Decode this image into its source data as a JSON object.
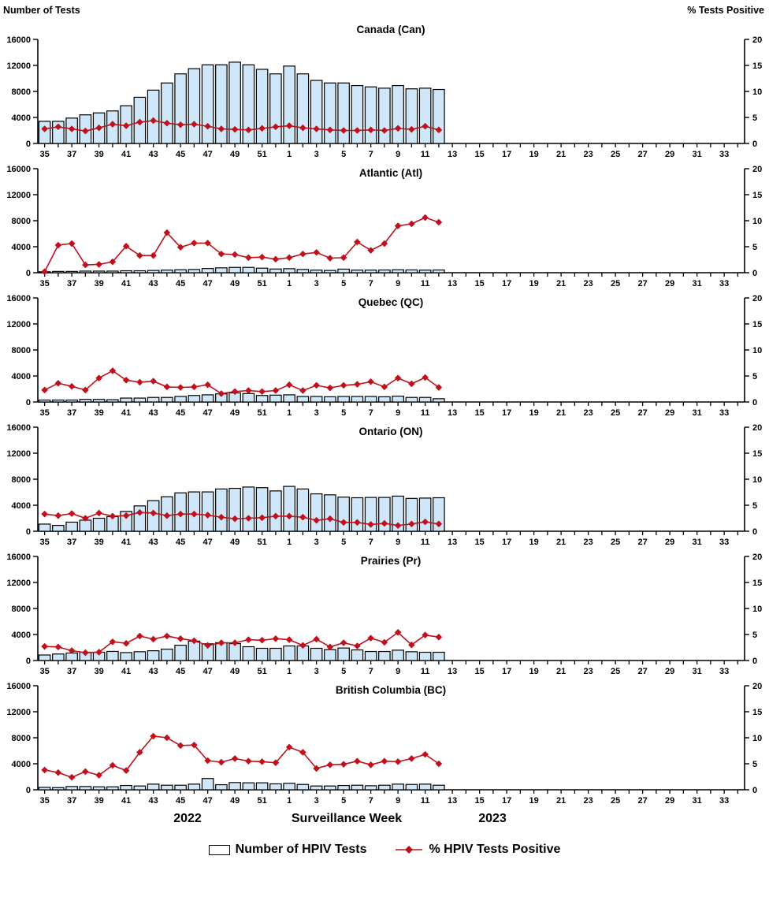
{
  "header": {
    "left_axis_title": "Number of Tests",
    "right_axis_title": "% Tests Positive"
  },
  "footer": {
    "year_left": "2022",
    "x_axis_title": "Surveillance Week",
    "year_right": "2023"
  },
  "legend": {
    "bar_label": "Number of HPIV Tests",
    "line_label": "% HPIV Tests Positive"
  },
  "colors": {
    "bar_fill": "#cfe7f8",
    "bar_stroke": "#000000",
    "line_color": "#c0101c",
    "axis_color": "#000000",
    "text_color": "#000000"
  },
  "axis_config": {
    "left_ticks": [
      0,
      4000,
      8000,
      12000,
      16000
    ],
    "left_max": 16000,
    "right_ticks": [
      0,
      5,
      10,
      15,
      20
    ],
    "right_max": 20,
    "x_tick_labels": [
      "35",
      "37",
      "39",
      "41",
      "43",
      "45",
      "47",
      "49",
      "51",
      "1",
      "3",
      "5",
      "7",
      "9",
      "11",
      "13",
      "15",
      "17",
      "19",
      "21",
      "23",
      "25",
      "27",
      "29",
      "31",
      "33"
    ],
    "total_slots": 52,
    "first_week": 35,
    "weeks_in_2022": 18
  },
  "chart_data": [
    {
      "type": "bar+line",
      "title": "Canada (Can)",
      "region_code": "Can",
      "x_weeks": [
        35,
        36,
        37,
        38,
        39,
        40,
        41,
        42,
        43,
        44,
        45,
        46,
        47,
        48,
        49,
        50,
        51,
        52,
        1,
        2,
        3,
        4,
        5,
        6,
        7,
        8,
        9,
        10,
        11,
        12
      ],
      "ylim_left": [
        0,
        16000
      ],
      "ylim_right": [
        0,
        20
      ],
      "series": [
        {
          "name": "Number of HPIV Tests",
          "type": "bar",
          "axis": "left",
          "values": [
            3400,
            3400,
            3900,
            4400,
            4700,
            5000,
            5800,
            7100,
            8200,
            9300,
            10700,
            11500,
            12100,
            12100,
            12500,
            12100,
            11400,
            10700,
            11900,
            10700,
            9700,
            9300,
            9300,
            8900,
            8700,
            8500,
            8900,
            8400,
            8500,
            8300
          ]
        },
        {
          "name": "% HPIV Tests Positive",
          "type": "line",
          "axis": "right",
          "values": [
            2.8,
            3.2,
            2.8,
            2.4,
            3.0,
            3.7,
            3.4,
            4.1,
            4.4,
            3.9,
            3.6,
            3.7,
            3.3,
            2.8,
            2.7,
            2.6,
            2.9,
            3.2,
            3.4,
            3.0,
            2.8,
            2.6,
            2.5,
            2.5,
            2.6,
            2.5,
            2.9,
            2.7,
            3.3,
            2.6
          ]
        }
      ]
    },
    {
      "type": "bar+line",
      "title": "Atlantic (Atl)",
      "region_code": "Atl",
      "x_weeks": [
        35,
        36,
        37,
        38,
        39,
        40,
        41,
        42,
        43,
        44,
        45,
        46,
        47,
        48,
        49,
        50,
        51,
        52,
        1,
        2,
        3,
        4,
        5,
        6,
        7,
        8,
        9,
        10,
        11,
        12
      ],
      "ylim_left": [
        0,
        16000
      ],
      "ylim_right": [
        0,
        20
      ],
      "series": [
        {
          "name": "Number of HPIV Tests",
          "type": "bar",
          "axis": "left",
          "values": [
            150,
            200,
            200,
            250,
            250,
            250,
            300,
            300,
            350,
            400,
            450,
            500,
            650,
            750,
            820,
            820,
            700,
            570,
            620,
            500,
            400,
            350,
            550,
            400,
            400,
            420,
            450,
            430,
            400,
            420
          ]
        },
        {
          "name": "% HPIV Tests Positive",
          "type": "line",
          "axis": "right",
          "values": [
            0.2,
            5.3,
            5.6,
            1.5,
            1.6,
            2.1,
            5.1,
            3.3,
            3.3,
            7.7,
            4.9,
            5.7,
            5.7,
            3.6,
            3.5,
            2.9,
            3.0,
            2.6,
            2.9,
            3.6,
            3.9,
            2.8,
            2.9,
            5.9,
            4.3,
            5.6,
            9.0,
            9.4,
            10.6,
            9.7
          ]
        }
      ]
    },
    {
      "type": "bar+line",
      "title": "Quebec (QC)",
      "region_code": "QC",
      "x_weeks": [
        35,
        36,
        37,
        38,
        39,
        40,
        41,
        42,
        43,
        44,
        45,
        46,
        47,
        48,
        49,
        50,
        51,
        52,
        1,
        2,
        3,
        4,
        5,
        6,
        7,
        8,
        9,
        10,
        11,
        12
      ],
      "ylim_left": [
        0,
        16000
      ],
      "ylim_right": [
        0,
        20
      ],
      "series": [
        {
          "name": "Number of HPIV Tests",
          "type": "bar",
          "axis": "left",
          "values": [
            300,
            300,
            300,
            400,
            400,
            350,
            600,
            600,
            700,
            700,
            850,
            1000,
            1100,
            1250,
            1400,
            1300,
            1000,
            1050,
            1100,
            850,
            850,
            800,
            850,
            850,
            850,
            800,
            900,
            700,
            700,
            500
          ]
        },
        {
          "name": "% HPIV Tests Positive",
          "type": "line",
          "axis": "right",
          "values": [
            2.3,
            3.6,
            3.0,
            2.3,
            4.6,
            6.0,
            4.2,
            3.8,
            4.0,
            2.9,
            2.8,
            2.9,
            3.3,
            1.6,
            2.0,
            2.2,
            2.0,
            2.2,
            3.3,
            2.2,
            3.2,
            2.7,
            3.2,
            3.4,
            3.9,
            2.9,
            4.6,
            3.5,
            4.7,
            2.8
          ]
        }
      ]
    },
    {
      "type": "bar+line",
      "title": "Ontario (ON)",
      "region_code": "ON",
      "x_weeks": [
        35,
        36,
        37,
        38,
        39,
        40,
        41,
        42,
        43,
        44,
        45,
        46,
        47,
        48,
        49,
        50,
        51,
        52,
        1,
        2,
        3,
        4,
        5,
        6,
        7,
        8,
        9,
        10,
        11,
        12
      ],
      "ylim_left": [
        0,
        16000
      ],
      "ylim_right": [
        0,
        20
      ],
      "series": [
        {
          "name": "Number of HPIV Tests",
          "type": "bar",
          "axis": "left",
          "values": [
            1100,
            900,
            1400,
            1700,
            2000,
            2250,
            3050,
            3900,
            4700,
            5300,
            5900,
            6050,
            6050,
            6500,
            6600,
            6800,
            6700,
            6200,
            6900,
            6500,
            5750,
            5600,
            5250,
            5150,
            5200,
            5200,
            5400,
            5050,
            5100,
            5150
          ]
        },
        {
          "name": "% HPIV Tests Positive",
          "type": "line",
          "axis": "right",
          "values": [
            3.3,
            3.0,
            3.4,
            2.5,
            3.5,
            2.9,
            3.0,
            3.6,
            3.5,
            3.0,
            3.3,
            3.3,
            3.1,
            2.7,
            2.4,
            2.5,
            2.6,
            2.9,
            2.9,
            2.7,
            2.1,
            2.4,
            1.7,
            1.7,
            1.3,
            1.5,
            1.1,
            1.4,
            1.8,
            1.4
          ]
        }
      ]
    },
    {
      "type": "bar+line",
      "title": "Prairies (Pr)",
      "region_code": "Pr",
      "x_weeks": [
        35,
        36,
        37,
        38,
        39,
        40,
        41,
        42,
        43,
        44,
        45,
        46,
        47,
        48,
        49,
        50,
        51,
        52,
        1,
        2,
        3,
        4,
        5,
        6,
        7,
        8,
        9,
        10,
        11,
        12
      ],
      "ylim_left": [
        0,
        16000
      ],
      "ylim_right": [
        0,
        20
      ],
      "series": [
        {
          "name": "Number of HPIV Tests",
          "type": "bar",
          "axis": "left",
          "values": [
            850,
            1000,
            1150,
            1270,
            1270,
            1400,
            1220,
            1350,
            1500,
            1750,
            2350,
            2980,
            2570,
            2730,
            2600,
            2120,
            1880,
            1880,
            2240,
            2240,
            1880,
            1670,
            1920,
            1630,
            1390,
            1390,
            1590,
            1350,
            1270,
            1270
          ]
        },
        {
          "name": "% HPIV Tests Positive",
          "type": "line",
          "axis": "right",
          "values": [
            2.7,
            2.6,
            1.9,
            1.5,
            1.6,
            3.6,
            3.3,
            4.7,
            4.1,
            4.7,
            4.2,
            3.8,
            2.9,
            3.4,
            3.4,
            4.0,
            3.9,
            4.2,
            4.0,
            2.9,
            4.1,
            2.6,
            3.4,
            2.8,
            4.3,
            3.5,
            5.4,
            3.0,
            4.9,
            4.5
          ]
        }
      ]
    },
    {
      "type": "bar+line",
      "title": "British Columbia (BC)",
      "region_code": "BC",
      "x_weeks": [
        35,
        36,
        37,
        38,
        39,
        40,
        41,
        42,
        43,
        44,
        45,
        46,
        47,
        48,
        49,
        50,
        51,
        52,
        1,
        2,
        3,
        4,
        5,
        6,
        7,
        8,
        9,
        10,
        11,
        12
      ],
      "ylim_left": [
        0,
        16000
      ],
      "ylim_right": [
        0,
        20
      ],
      "series": [
        {
          "name": "Number of HPIV Tests",
          "type": "bar",
          "axis": "left",
          "values": [
            370,
            330,
            500,
            500,
            450,
            450,
            660,
            580,
            870,
            700,
            700,
            870,
            1730,
            780,
            1110,
            1070,
            1070,
            910,
            990,
            820,
            580,
            580,
            660,
            700,
            620,
            700,
            870,
            820,
            870,
            700
          ]
        },
        {
          "name": "% HPIV Tests Positive",
          "type": "line",
          "axis": "right",
          "values": [
            3.8,
            3.3,
            2.4,
            3.5,
            2.8,
            4.7,
            3.7,
            7.2,
            10.3,
            10.0,
            8.5,
            8.6,
            5.6,
            5.3,
            6.0,
            5.5,
            5.4,
            5.2,
            8.2,
            7.2,
            4.1,
            4.8,
            4.9,
            5.5,
            4.8,
            5.5,
            5.4,
            6.0,
            6.8,
            5.0
          ]
        }
      ]
    }
  ]
}
